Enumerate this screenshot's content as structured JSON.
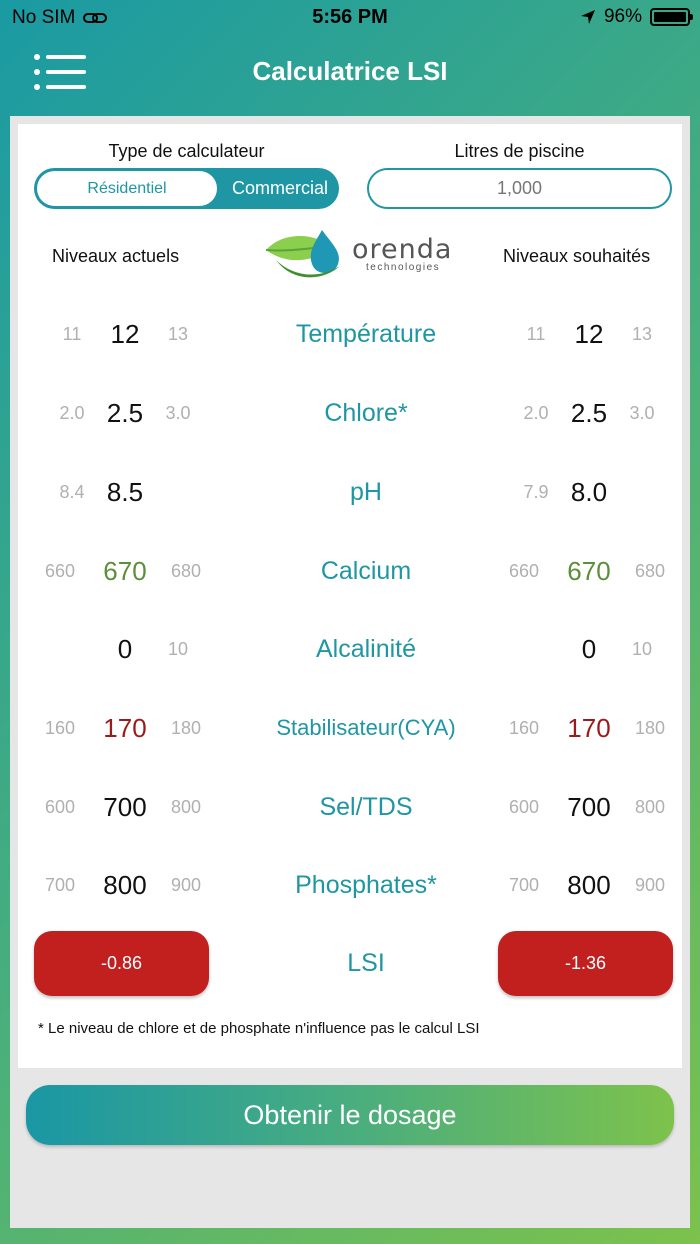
{
  "status_bar": {
    "carrier": "No SIM",
    "time": "5:56 PM",
    "battery": "96%"
  },
  "header": {
    "title": "Calculatrice LSI"
  },
  "calc_type": {
    "label": "Type de calculateur",
    "options": [
      "Résidentiel",
      "Commercial"
    ],
    "selected": "Commercial"
  },
  "pool": {
    "label": "Litres de piscine",
    "value": "1,000"
  },
  "columns": {
    "current": "Niveaux actuels",
    "desired": "Niveaux souhaités"
  },
  "logo": {
    "name": "orenda",
    "sub": "technologies"
  },
  "params": [
    {
      "name": "Température",
      "current": {
        "prev": "11",
        "value": "12",
        "next": "13"
      },
      "desired": {
        "prev": "11",
        "value": "12",
        "next": "13"
      }
    },
    {
      "name": "Chlore*",
      "current": {
        "prev": "2.0",
        "value": "2.5",
        "next": "3.0"
      },
      "desired": {
        "prev": "2.0",
        "value": "2.5",
        "next": "3.0"
      }
    },
    {
      "name": "pH",
      "current": {
        "prev": "8.4",
        "value": "8.5",
        "next": ""
      },
      "desired": {
        "prev": "7.9",
        "value": "8.0",
        "next": ""
      }
    },
    {
      "name": "Calcium",
      "current": {
        "prev": "660",
        "value": "670",
        "next": "680"
      },
      "desired": {
        "prev": "660",
        "value": "670",
        "next": "680"
      }
    },
    {
      "name": "Alcalinité",
      "current": {
        "prev": "",
        "value": "0",
        "next": "10"
      },
      "desired": {
        "prev": "",
        "value": "0",
        "next": "10"
      }
    },
    {
      "name": "Stabilisateur(CYA)",
      "current": {
        "prev": "160",
        "value": "170",
        "next": "180"
      },
      "desired": {
        "prev": "160",
        "value": "170",
        "next": "180"
      }
    },
    {
      "name": "Sel/TDS",
      "current": {
        "prev": "600",
        "value": "700",
        "next": "800"
      },
      "desired": {
        "prev": "600",
        "value": "700",
        "next": "800"
      }
    },
    {
      "name": "Phosphates*",
      "current": {
        "prev": "700",
        "value": "800",
        "next": "900"
      },
      "desired": {
        "prev": "700",
        "value": "800",
        "next": "900"
      }
    }
  ],
  "lsi": {
    "label": "LSI",
    "current": "-0.86",
    "desired": "-1.36"
  },
  "footnote": "* Le niveau de chlore et de phosphate n'influence pas le calcul LSI",
  "cta": {
    "label": "Obtenir le dosage"
  },
  "colors": {
    "accent": "#1e96a3",
    "green": "#7dc24c",
    "lsi_red": "#c21f1f",
    "calcium_value": "#5c8f3a",
    "cya_value": "#9b1b1b"
  }
}
